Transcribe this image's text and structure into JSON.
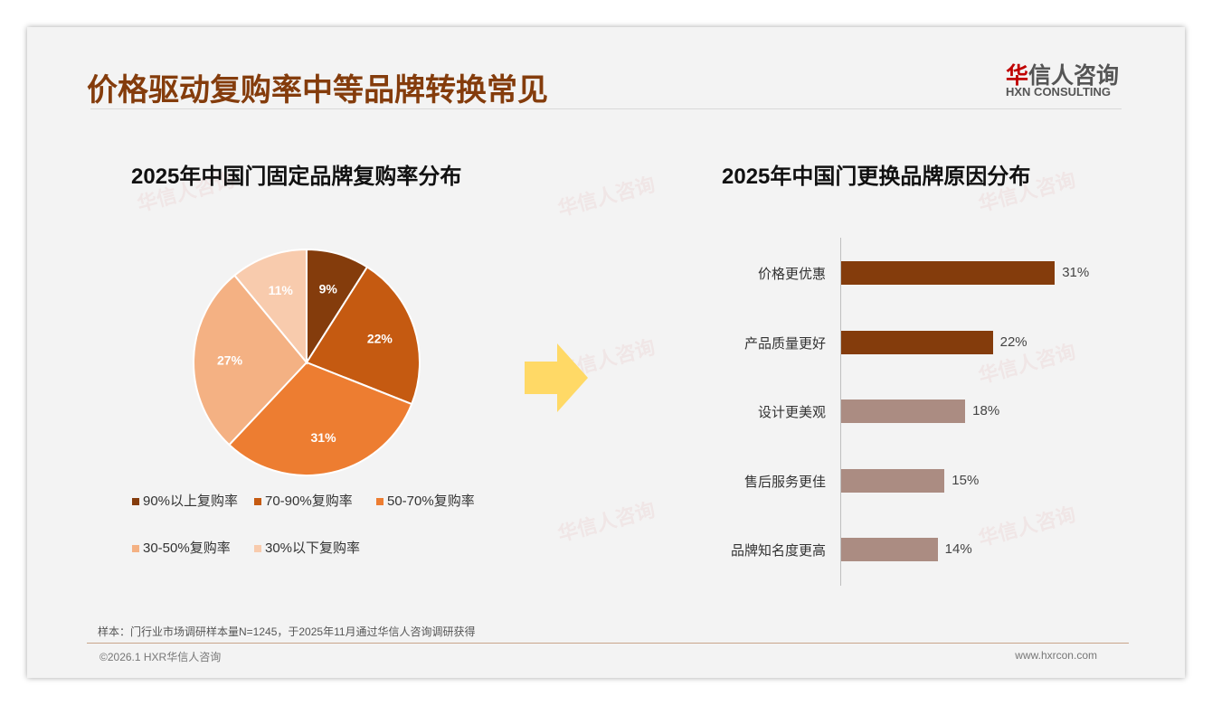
{
  "title": "价格驱动复购率中等品牌转换常见",
  "logo": {
    "cn": "华信人咨询",
    "en": "HXN CONSULTING"
  },
  "watermark": "华信人咨询",
  "chart_data": [
    {
      "type": "pie",
      "title": "2025年中国门固定品牌复购率分布",
      "categories": [
        "90%以上复购率",
        "70-90%复购率",
        "50-70%复购率",
        "30-50%复购率",
        "30%以下复购率"
      ],
      "values": [
        9,
        22,
        31,
        27,
        11
      ],
      "labels": [
        "9%",
        "22%",
        "31%",
        "27%",
        "11%"
      ],
      "colors": [
        "#843C0C",
        "#C55A11",
        "#ED7D31",
        "#F4B183",
        "#F8CBAD"
      ],
      "legend": "bottom"
    },
    {
      "type": "bar",
      "orientation": "horizontal",
      "title": "2025年中国门更换品牌原因分布",
      "categories": [
        "价格更优惠",
        "产品质量更好",
        "设计更美观",
        "售后服务更佳",
        "品牌知名度更高"
      ],
      "values": [
        31,
        22,
        18,
        15,
        14
      ],
      "labels": [
        "31%",
        "22%",
        "18%",
        "15%",
        "14%"
      ],
      "colors": [
        "#843C0C",
        "#843C0C",
        "#AB8C82",
        "#AB8C82",
        "#AB8C82"
      ]
    }
  ],
  "note": "样本：门行业市场调研样本量N=1245，于2025年11月通过华信人咨询调研获得",
  "footer": {
    "left": "©2026.1 HXR华信人咨询",
    "right": "www.hxrcon.com"
  }
}
